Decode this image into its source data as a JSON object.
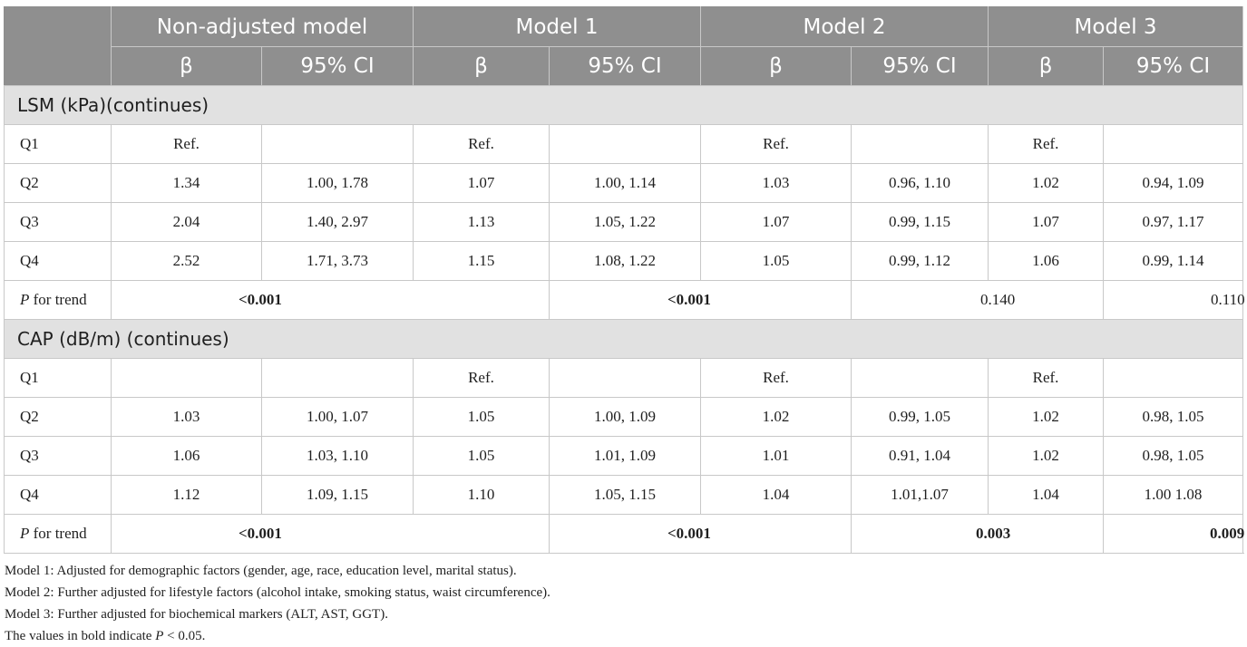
{
  "header": {
    "models": [
      "Non-adjusted model",
      "Model 1",
      "Model 2",
      "Model 3"
    ],
    "beta": "β",
    "ci": "95% CI"
  },
  "sections": [
    {
      "title": "LSM (kPa)(continues)",
      "rows": [
        {
          "label": "Q1",
          "cells": [
            "Ref.",
            "",
            "Ref.",
            "",
            "Ref.",
            "",
            "Ref.",
            ""
          ]
        },
        {
          "label": "Q2",
          "cells": [
            "1.34",
            "1.00, 1.78",
            "1.07",
            "1.00, 1.14",
            "1.03",
            "0.96, 1.10",
            "1.02",
            "0.94, 1.09"
          ]
        },
        {
          "label": "Q3",
          "cells": [
            "2.04",
            "1.40, 2.97",
            "1.13",
            "1.05, 1.22",
            "1.07",
            "0.99, 1.15",
            "1.07",
            "0.97, 1.17"
          ]
        },
        {
          "label": "Q4",
          "cells": [
            "2.52",
            "1.71, 3.73",
            "1.15",
            "1.08, 1.22",
            "1.05",
            "0.99, 1.12",
            "1.06",
            "0.99, 1.14"
          ]
        }
      ],
      "trend": {
        "p": "P",
        "label": " for trend",
        "values": [
          "<0.001",
          "<0.001",
          "0.140",
          "0.110"
        ]
      }
    },
    {
      "title": "CAP (dB/m) (continues)",
      "rows": [
        {
          "label": "Q1",
          "cells": [
            "",
            "",
            "Ref.",
            "",
            "Ref.",
            "",
            "Ref.",
            ""
          ]
        },
        {
          "label": "Q2",
          "cells": [
            "1.03",
            "1.00, 1.07",
            "1.05",
            "1.00, 1.09",
            "1.02",
            "0.99, 1.05",
            "1.02",
            "0.98, 1.05"
          ]
        },
        {
          "label": "Q3",
          "cells": [
            "1.06",
            "1.03, 1.10",
            "1.05",
            "1.01, 1.09",
            "1.01",
            "0.91, 1.04",
            "1.02",
            "0.98, 1.05"
          ]
        },
        {
          "label": "Q4",
          "cells": [
            "1.12",
            "1.09, 1.15",
            "1.10",
            "1.05, 1.15",
            "1.04",
            "1.01,1.07",
            "1.04",
            "1.00 1.08"
          ]
        }
      ],
      "trend": {
        "p": "P",
        "label": " for trend",
        "values": [
          "<0.001",
          "<0.001",
          "0.003",
          "0.009"
        ]
      }
    }
  ],
  "footnotes": {
    "model1": "Model 1: Adjusted for demographic factors (gender, age, race, education level, marital status).",
    "model2": "Model 2: Further adjusted for lifestyle factors (alcohol intake, smoking status, waist circumference).",
    "model3": "Model 3: Further adjusted for biochemical markers (ALT, AST, GGT).",
    "bold_prefix": "The values in bold indicate ",
    "bold_p": "P",
    "bold_suffix": " < 0.05."
  }
}
